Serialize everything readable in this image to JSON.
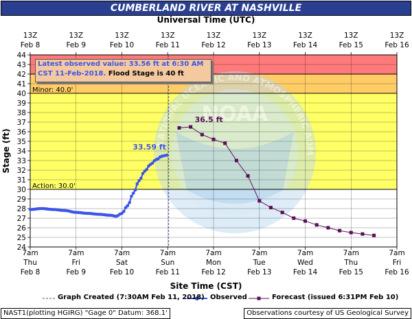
{
  "title": "CUMBERLAND RIVER AT NASHVILLE",
  "top_axis_label": "Universal Time (UTC)",
  "bottom_axis_label": "Site Time (CST)",
  "ylabel": "Stage (ft)",
  "watermark_text": "NATIONAL OCEANIC AND ATMOSPHERIC ADMINISTRATION · U.S. DEPARTMENT OF COMMERCE",
  "annotation": {
    "line1": "Latest observed value: 33.56 ft at 6:30 AM",
    "line2a": "CST 11-Feb-2018.",
    "line2b": " Flood Stage is 40 ft"
  },
  "legend": {
    "created": "Graph Created (7:30AM Feb 11, 2018)",
    "observed": "Observed",
    "forecast": "Forecast (issued 6:31PM Feb 10)"
  },
  "footer": {
    "left": "NAST1(plotting HGIRG) \"Gage 0\" Datum: 368.1'",
    "right": "Observations courtesy of US Geological Survey"
  },
  "colors": {
    "observed": "#3d55e6",
    "forecast": "#5a0f57",
    "action_band": "#ffff66",
    "minor_band": "#ffcc66",
    "moderate_band": "#ff7a7a",
    "title_bg": "#2b3f91",
    "created_line": "#4a4fb0"
  },
  "chart_data": {
    "type": "line",
    "ylim": [
      24,
      44
    ],
    "y_ticks": [
      24,
      25,
      26,
      27,
      28,
      29,
      30,
      31,
      32,
      33,
      34,
      35,
      36,
      37,
      38,
      39,
      40,
      41,
      42,
      43,
      44
    ],
    "x_axis_bottom": [
      {
        "time": "7am",
        "day": "Thu",
        "date": "Feb 8"
      },
      {
        "time": "7am",
        "day": "Fri",
        "date": "Feb 9"
      },
      {
        "time": "7am",
        "day": "Sat",
        "date": "Feb 10"
      },
      {
        "time": "7am",
        "day": "Sun",
        "date": "Feb 11"
      },
      {
        "time": "7am",
        "day": "Mon",
        "date": "Feb 12"
      },
      {
        "time": "7am",
        "day": "Tue",
        "date": "Feb 13"
      },
      {
        "time": "7am",
        "day": "Wed",
        "date": "Feb 14"
      },
      {
        "time": "7am",
        "day": "Thu",
        "date": "Feb 15"
      },
      {
        "time": "7am",
        "day": "Fri",
        "date": "Feb 16"
      }
    ],
    "x_axis_top": [
      {
        "time": "13Z",
        "date": "Feb 8"
      },
      {
        "time": "13Z",
        "date": "Feb 9"
      },
      {
        "time": "13Z",
        "date": "Feb 10"
      },
      {
        "time": "13Z",
        "date": "Feb 11"
      },
      {
        "time": "13Z",
        "date": "Feb 12"
      },
      {
        "time": "13Z",
        "date": "Feb 13"
      },
      {
        "time": "13Z",
        "date": "Feb 14"
      },
      {
        "time": "13Z",
        "date": "Feb 15"
      },
      {
        "time": "13Z",
        "date": "Feb 16"
      }
    ],
    "x_range": [
      "Feb 8 7am",
      "Feb 16 7am"
    ],
    "flood_categories": [
      {
        "name": "Action",
        "label": "Action: 30.0'",
        "from": 30,
        "to": 40,
        "color": "#ffff66"
      },
      {
        "name": "Minor",
        "label": "Minor: 40.0'",
        "from": 40,
        "to": 42,
        "color": "#ffcc66"
      },
      {
        "name": "Moderate",
        "label": "",
        "from": 42,
        "to": 44,
        "color": "#ff7a7a"
      }
    ],
    "created_time": "Feb 11 7:30am",
    "series": [
      {
        "name": "Observed",
        "x": [
          "Feb 8 7am",
          "Feb 8 1pm",
          "Feb 8 7pm",
          "Feb 9 1am",
          "Feb 9 7am",
          "Feb 9 1pm",
          "Feb 9 7pm",
          "Feb 10 1am",
          "Feb 10 4am",
          "Feb 10 7am",
          "Feb 10 10am",
          "Feb 10 1pm",
          "Feb 10 4pm",
          "Feb 10 7pm",
          "Feb 10 10pm",
          "Feb 11 1am",
          "Feb 11 4am",
          "Feb 11 6:30am"
        ],
        "values": [
          27.9,
          28.0,
          27.9,
          27.8,
          27.6,
          27.5,
          27.4,
          27.3,
          27.2,
          27.5,
          28.3,
          29.6,
          30.9,
          31.9,
          32.6,
          33.1,
          33.45,
          33.56
        ],
        "peak_label": "33.59 ft"
      },
      {
        "name": "Forecast",
        "x": [
          "Feb 11 1pm",
          "Feb 11 7pm",
          "Feb 12 1am",
          "Feb 12 7am",
          "Feb 12 1pm",
          "Feb 12 7pm",
          "Feb 13 1am",
          "Feb 13 7am",
          "Feb 13 1pm",
          "Feb 13 7pm",
          "Feb 14 1am",
          "Feb 14 7am",
          "Feb 14 1pm",
          "Feb 14 7pm",
          "Feb 15 1am",
          "Feb 15 7am",
          "Feb 15 1pm",
          "Feb 15 7pm"
        ],
        "values": [
          36.4,
          36.5,
          35.7,
          35.2,
          34.8,
          33.0,
          31.4,
          28.8,
          28.1,
          27.6,
          27.0,
          26.7,
          26.3,
          26.0,
          25.7,
          25.5,
          25.35,
          25.2
        ],
        "peak_label": "36.5 ft"
      }
    ]
  }
}
